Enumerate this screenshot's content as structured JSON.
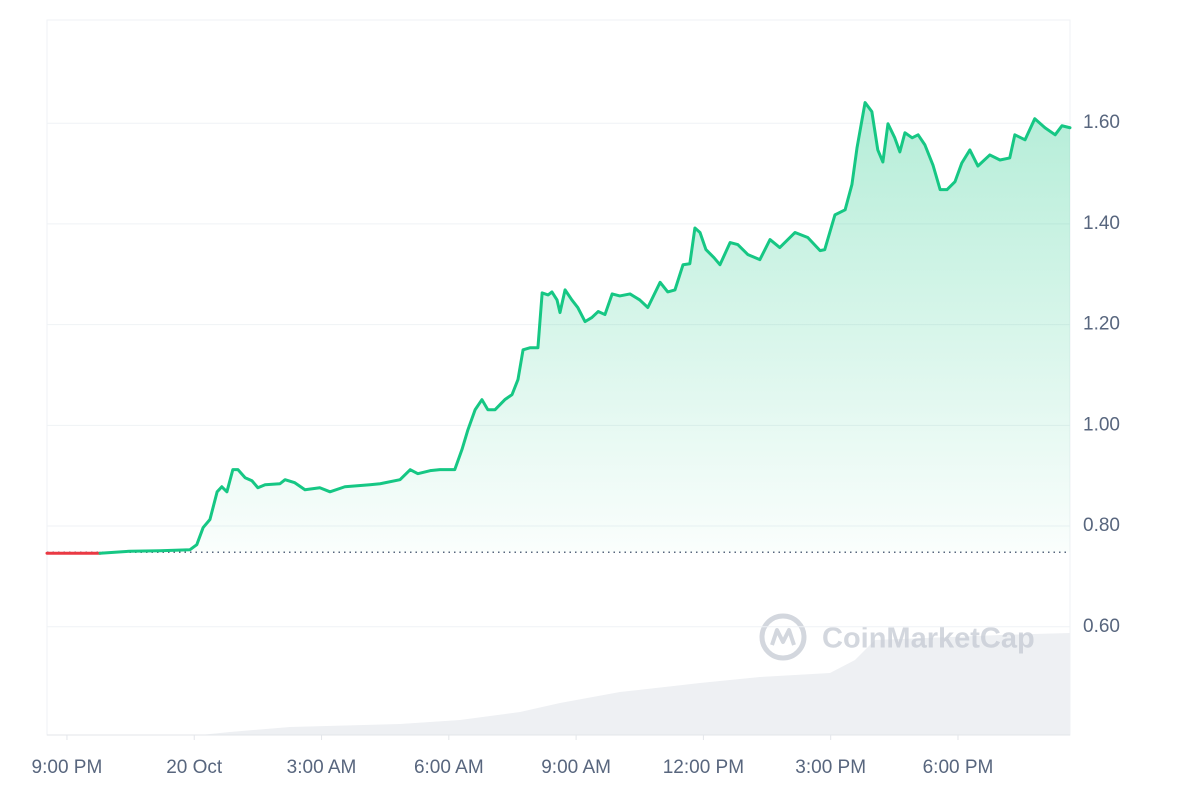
{
  "chart_data": {
    "type": "line",
    "watermark": "CoinMarketCap",
    "xlim": [
      -0.47,
      23.64
    ],
    "xticks": [
      {
        "value": 0,
        "label": "9:00 PM"
      },
      {
        "value": 3,
        "label": "20 Oct"
      },
      {
        "value": 6,
        "label": "3:00 AM"
      },
      {
        "value": 9,
        "label": "6:00 AM"
      },
      {
        "value": 12,
        "label": "9:00 AM"
      },
      {
        "value": 15,
        "label": "12:00 PM"
      },
      {
        "value": 18,
        "label": "3:00 PM"
      },
      {
        "value": 21,
        "label": "6:00 PM"
      }
    ],
    "ylim": [
      0.385,
      1.805
    ],
    "yticks": [
      {
        "value": 0.6,
        "label": "0.60"
      },
      {
        "value": 0.8,
        "label": "0.80"
      },
      {
        "value": 1.0,
        "label": "1.00"
      },
      {
        "value": 1.2,
        "label": "1.20"
      },
      {
        "value": 1.4,
        "label": "1.40"
      },
      {
        "value": 1.6,
        "label": "1.60"
      }
    ],
    "grid": true,
    "baseline": 0.748,
    "positive_color": "#16c784",
    "negative_color": "#ea3943",
    "x": [
      -0.47,
      0.78,
      1.48,
      2.19,
      2.9,
      3.06,
      3.21,
      3.37,
      3.54,
      3.65,
      3.77,
      3.91,
      4.03,
      4.2,
      4.36,
      4.5,
      4.67,
      5.02,
      5.14,
      5.37,
      5.61,
      5.96,
      6.2,
      6.55,
      7.14,
      7.38,
      7.85,
      8.09,
      8.27,
      8.56,
      8.79,
      9.14,
      9.31,
      9.45,
      9.62,
      9.78,
      9.92,
      10.09,
      10.32,
      10.49,
      10.63,
      10.75,
      10.91,
      11.1,
      11.2,
      11.34,
      11.43,
      11.55,
      11.62,
      11.74,
      11.9,
      12.04,
      12.21,
      12.37,
      12.52,
      12.68,
      12.85,
      13.03,
      13.27,
      13.5,
      13.69,
      13.98,
      14.16,
      14.33,
      14.52,
      14.68,
      14.8,
      14.92,
      15.06,
      15.25,
      15.39,
      15.63,
      15.81,
      16.05,
      16.33,
      16.57,
      16.8,
      17.16,
      17.46,
      17.75,
      17.86,
      18.1,
      18.34,
      18.5,
      18.62,
      18.81,
      18.97,
      19.11,
      19.23,
      19.35,
      19.51,
      19.63,
      19.75,
      19.92,
      20.06,
      20.22,
      20.41,
      20.58,
      20.74,
      20.93,
      21.09,
      21.28,
      21.47,
      21.75,
      21.99,
      22.22,
      22.34,
      22.58,
      22.81,
      23.05,
      23.29,
      23.45,
      23.64
    ],
    "values": [
      0.746,
      0.746,
      0.75,
      0.751,
      0.753,
      0.763,
      0.797,
      0.813,
      0.868,
      0.878,
      0.868,
      0.912,
      0.912,
      0.896,
      0.89,
      0.876,
      0.882,
      0.884,
      0.892,
      0.886,
      0.872,
      0.876,
      0.868,
      0.878,
      0.882,
      0.884,
      0.892,
      0.912,
      0.904,
      0.91,
      0.912,
      0.912,
      0.952,
      0.991,
      1.031,
      1.051,
      1.031,
      1.031,
      1.051,
      1.061,
      1.091,
      1.15,
      1.154,
      1.154,
      1.263,
      1.259,
      1.265,
      1.249,
      1.224,
      1.269,
      1.249,
      1.234,
      1.206,
      1.214,
      1.226,
      1.22,
      1.261,
      1.257,
      1.261,
      1.249,
      1.234,
      1.284,
      1.265,
      1.269,
      1.319,
      1.321,
      1.392,
      1.383,
      1.349,
      1.333,
      1.319,
      1.363,
      1.359,
      1.339,
      1.329,
      1.369,
      1.353,
      1.383,
      1.373,
      1.347,
      1.349,
      1.418,
      1.428,
      1.478,
      1.551,
      1.641,
      1.623,
      1.547,
      1.523,
      1.599,
      1.571,
      1.543,
      1.581,
      1.571,
      1.577,
      1.557,
      1.517,
      1.468,
      1.468,
      1.484,
      1.521,
      1.547,
      1.515,
      1.537,
      1.527,
      1.531,
      1.577,
      1.567,
      1.609,
      1.591,
      1.577,
      1.595,
      1.591
    ]
  }
}
